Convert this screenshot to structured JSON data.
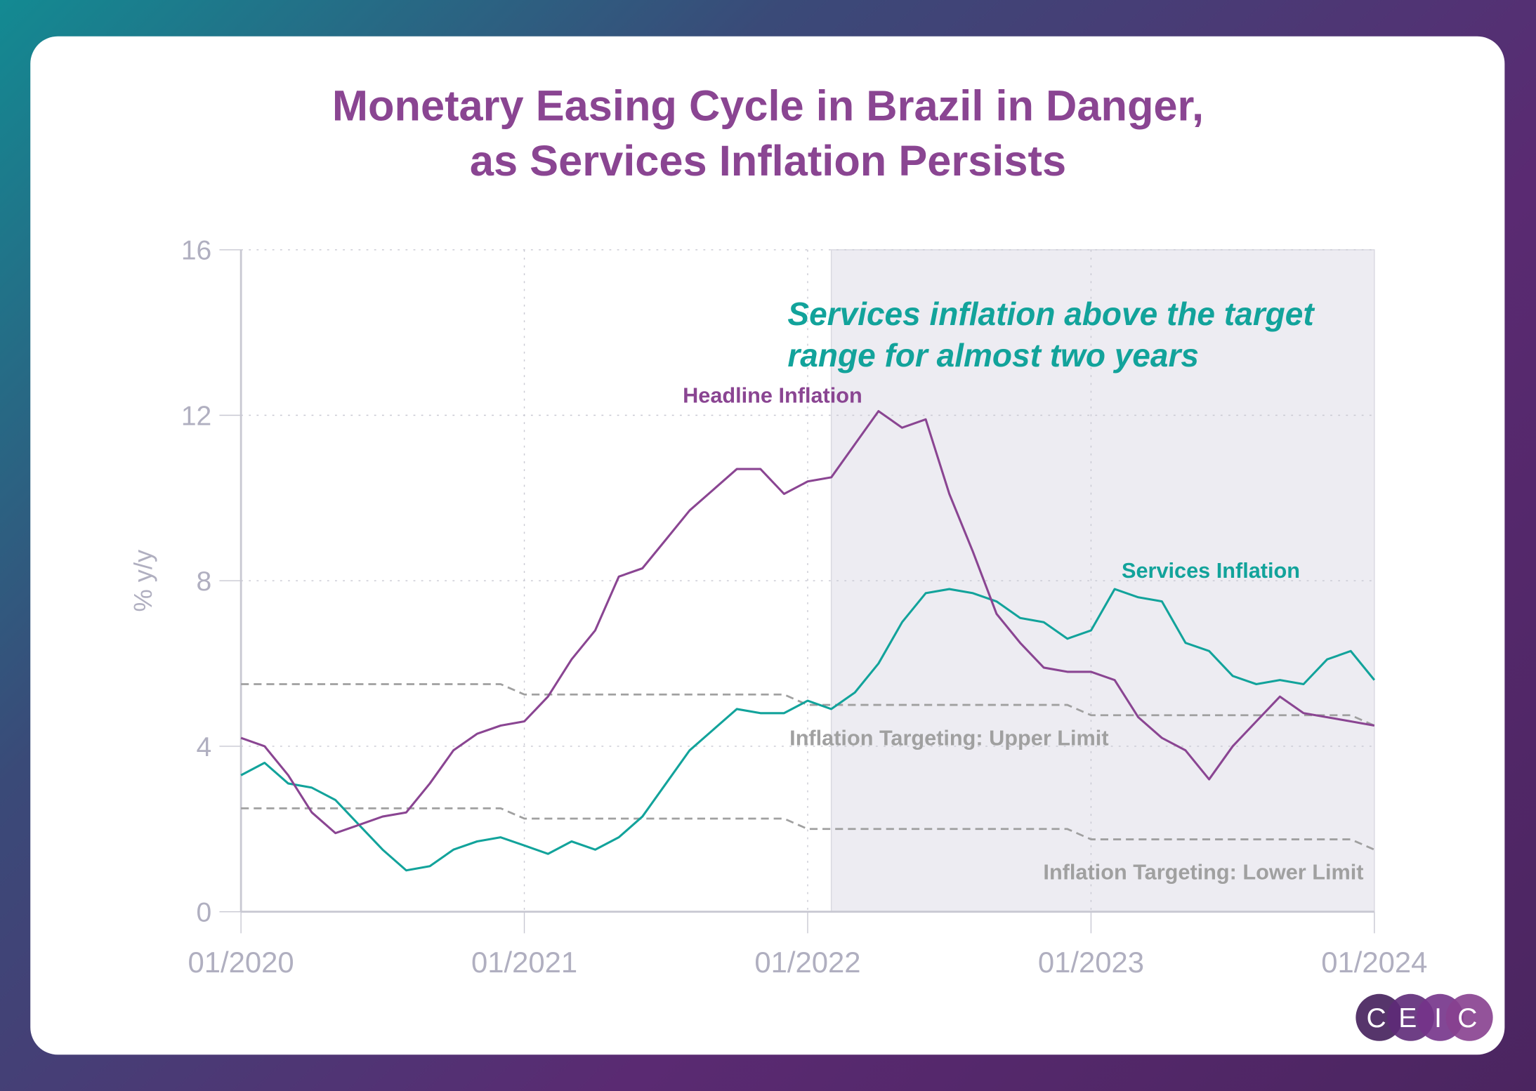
{
  "title_line1": "Monetary Easing Cycle in Brazil in Danger,",
  "title_line2": "as Services Inflation Persists",
  "logo_letters": [
    "C",
    "E",
    "I",
    "C"
  ],
  "colors": {
    "headline": "#8a4592",
    "services": "#12a39b",
    "target": "#a0a0a0",
    "shade": "#edecf2",
    "title": "#8a4592",
    "annotation": "#12a39b"
  },
  "annotation_line1": "Services inflation above the target",
  "annotation_line2": "range for almost two years",
  "chart_data": {
    "type": "line",
    "ylabel": "% y/y",
    "ylim": [
      0,
      16
    ],
    "yticks": [
      0,
      4,
      8,
      12,
      16
    ],
    "xticks": [
      "01/2020",
      "01/2021",
      "01/2022",
      "01/2023",
      "01/2024"
    ],
    "x_start": "01/2020",
    "x_end": "01/2024",
    "frequency": "monthly",
    "grid": true,
    "shaded_period": [
      "02/2022",
      "01/2024"
    ],
    "series": [
      {
        "name": "Headline Inflation",
        "color": "#8a4592",
        "values": [
          4.2,
          4.0,
          3.3,
          2.4,
          1.9,
          2.1,
          2.3,
          2.4,
          3.1,
          3.9,
          4.3,
          4.5,
          4.6,
          5.2,
          6.1,
          6.8,
          8.1,
          8.3,
          9.0,
          9.7,
          10.2,
          10.7,
          10.7,
          10.1,
          10.4,
          10.5,
          11.3,
          12.1,
          11.7,
          11.9,
          10.1,
          8.7,
          7.2,
          6.5,
          5.9,
          5.8,
          5.8,
          5.6,
          4.7,
          4.2,
          3.9,
          3.2,
          4.0,
          4.6,
          5.2,
          4.8,
          4.7,
          4.6,
          4.5
        ]
      },
      {
        "name": "Services Inflation",
        "color": "#12a39b",
        "values": [
          3.3,
          3.6,
          3.1,
          3.0,
          2.7,
          2.1,
          1.5,
          1.0,
          1.1,
          1.5,
          1.7,
          1.8,
          1.6,
          1.4,
          1.7,
          1.5,
          1.8,
          2.3,
          3.1,
          3.9,
          4.4,
          4.9,
          4.8,
          4.8,
          5.1,
          4.9,
          5.3,
          6.0,
          7.0,
          7.7,
          7.8,
          7.7,
          7.5,
          7.1,
          7.0,
          6.6,
          6.8,
          7.8,
          7.6,
          7.5,
          6.5,
          6.3,
          5.7,
          5.5,
          5.6,
          5.5,
          6.1,
          6.3,
          5.6
        ]
      },
      {
        "name": "Inflation Targeting: Upper Limit",
        "color": "#a0a0a0",
        "dashed": true,
        "values": [
          5.5,
          5.5,
          5.5,
          5.5,
          5.5,
          5.5,
          5.5,
          5.5,
          5.5,
          5.5,
          5.5,
          5.5,
          5.25,
          5.25,
          5.25,
          5.25,
          5.25,
          5.25,
          5.25,
          5.25,
          5.25,
          5.25,
          5.25,
          5.25,
          5.0,
          5.0,
          5.0,
          5.0,
          5.0,
          5.0,
          5.0,
          5.0,
          5.0,
          5.0,
          5.0,
          5.0,
          4.75,
          4.75,
          4.75,
          4.75,
          4.75,
          4.75,
          4.75,
          4.75,
          4.75,
          4.75,
          4.75,
          4.75,
          4.5
        ]
      },
      {
        "name": "Inflation Targeting: Lower Limit",
        "color": "#a0a0a0",
        "dashed": true,
        "values": [
          2.5,
          2.5,
          2.5,
          2.5,
          2.5,
          2.5,
          2.5,
          2.5,
          2.5,
          2.5,
          2.5,
          2.5,
          2.25,
          2.25,
          2.25,
          2.25,
          2.25,
          2.25,
          2.25,
          2.25,
          2.25,
          2.25,
          2.25,
          2.25,
          2.0,
          2.0,
          2.0,
          2.0,
          2.0,
          2.0,
          2.0,
          2.0,
          2.0,
          2.0,
          2.0,
          2.0,
          1.75,
          1.75,
          1.75,
          1.75,
          1.75,
          1.75,
          1.75,
          1.75,
          1.75,
          1.75,
          1.75,
          1.75,
          1.5
        ]
      }
    ]
  }
}
